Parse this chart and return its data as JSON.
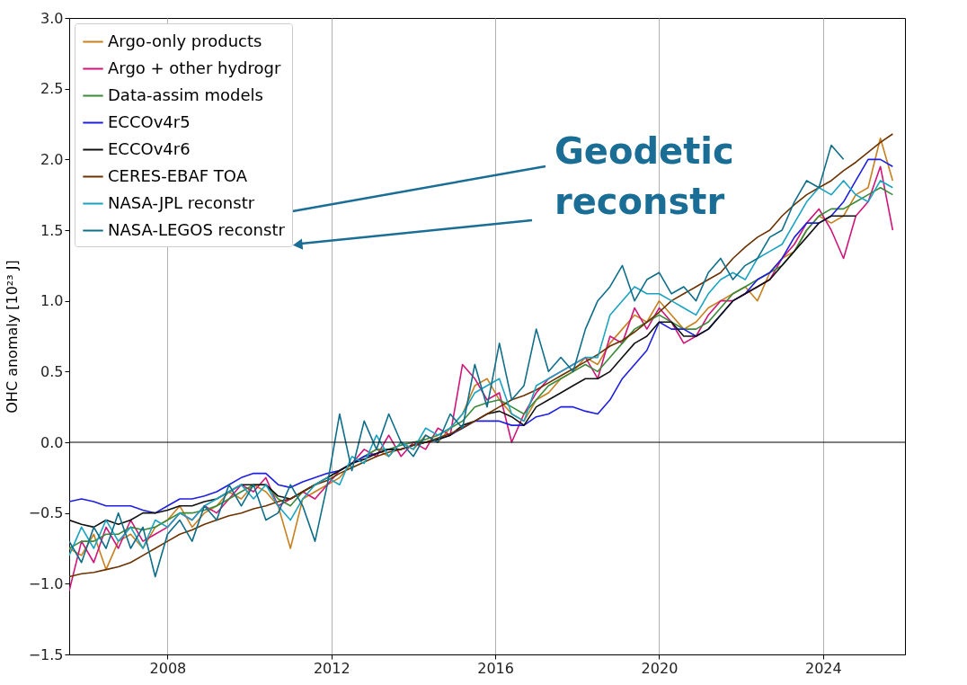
{
  "chart_data": {
    "type": "line",
    "ylabel": "OHC anomaly [10²³ J]",
    "annotations": [
      "Geodetic reconstr"
    ],
    "x": [
      2005.6,
      2005.9,
      2006.2,
      2006.5,
      2006.8,
      2007.1,
      2007.4,
      2007.7,
      2008.0,
      2008.3,
      2008.6,
      2008.9,
      2009.2,
      2009.5,
      2009.8,
      2010.1,
      2010.4,
      2010.7,
      2011.0,
      2011.3,
      2011.6,
      2011.9,
      2012.2,
      2012.5,
      2012.8,
      2013.1,
      2013.4,
      2013.7,
      2014.0,
      2014.3,
      2014.6,
      2014.9,
      2015.2,
      2015.5,
      2015.8,
      2016.1,
      2016.4,
      2016.7,
      2017.0,
      2017.3,
      2017.6,
      2017.9,
      2018.2,
      2018.5,
      2018.8,
      2019.1,
      2019.4,
      2019.7,
      2020.0,
      2020.3,
      2020.6,
      2020.9,
      2021.2,
      2021.5,
      2021.8,
      2022.1,
      2022.4,
      2022.7,
      2023.0,
      2023.3,
      2023.6,
      2023.9,
      2024.2,
      2024.5,
      2024.8,
      2025.1,
      2025.4,
      2025.7
    ],
    "series": [
      {
        "name": "Argo-only products",
        "color": "#c8801e",
        "values": [
          -0.75,
          -0.8,
          -0.65,
          -0.9,
          -0.7,
          -0.65,
          -0.75,
          -0.6,
          -0.55,
          -0.45,
          -0.6,
          -0.5,
          -0.45,
          -0.35,
          -0.4,
          -0.3,
          -0.35,
          -0.45,
          -0.75,
          -0.4,
          -0.35,
          -0.3,
          -0.25,
          -0.15,
          -0.1,
          -0.05,
          -0.1,
          0.0,
          -0.05,
          0.05,
          0.0,
          0.1,
          0.2,
          0.4,
          0.45,
          0.3,
          0.2,
          0.15,
          0.3,
          0.35,
          0.45,
          0.5,
          0.6,
          0.55,
          0.7,
          0.8,
          0.9,
          0.85,
          1.0,
          0.9,
          0.8,
          0.85,
          0.95,
          1.0,
          1.05,
          1.1,
          1.0,
          1.2,
          1.3,
          1.35,
          1.5,
          1.6,
          1.55,
          1.6,
          1.75,
          1.8,
          2.15,
          1.85
        ]
      },
      {
        "name": "Argo + other hydrogr",
        "color": "#d0157a",
        "values": [
          -1.05,
          -0.7,
          -0.85,
          -0.6,
          -0.75,
          -0.55,
          -0.7,
          -0.65,
          -0.6,
          -0.5,
          -0.55,
          -0.45,
          -0.5,
          -0.4,
          -0.3,
          -0.35,
          -0.25,
          -0.45,
          -0.4,
          -0.35,
          -0.4,
          -0.3,
          -0.2,
          -0.15,
          -0.05,
          -0.1,
          0.05,
          -0.1,
          0.0,
          -0.05,
          0.1,
          0.05,
          0.55,
          0.45,
          0.3,
          0.35,
          0.0,
          0.2,
          0.35,
          0.45,
          0.5,
          0.55,
          0.6,
          0.45,
          0.75,
          0.7,
          0.95,
          0.8,
          0.95,
          0.85,
          0.7,
          0.75,
          0.9,
          1.0,
          1.0,
          1.05,
          1.1,
          1.15,
          1.3,
          1.4,
          1.55,
          1.65,
          1.5,
          1.3,
          1.6,
          1.7,
          1.95,
          1.5
        ]
      },
      {
        "name": "Data-assim models",
        "color": "#3a8a3a",
        "values": [
          -0.75,
          -0.7,
          -0.7,
          -0.65,
          -0.65,
          -0.6,
          -0.62,
          -0.6,
          -0.55,
          -0.5,
          -0.5,
          -0.48,
          -0.45,
          -0.4,
          -0.35,
          -0.3,
          -0.3,
          -0.4,
          -0.45,
          -0.35,
          -0.3,
          -0.25,
          -0.2,
          -0.15,
          -0.1,
          -0.05,
          -0.05,
          -0.02,
          0.0,
          0.02,
          0.05,
          0.1,
          0.15,
          0.25,
          0.28,
          0.3,
          0.25,
          0.2,
          0.3,
          0.4,
          0.45,
          0.5,
          0.55,
          0.5,
          0.6,
          0.7,
          0.8,
          0.85,
          0.9,
          0.85,
          0.8,
          0.8,
          0.85,
          0.95,
          1.05,
          1.1,
          1.15,
          1.2,
          1.25,
          1.35,
          1.5,
          1.6,
          1.65,
          1.65,
          1.7,
          1.75,
          1.8,
          1.75
        ]
      },
      {
        "name": "ECCOv4r5",
        "color": "#1f1fe0",
        "values": [
          -0.42,
          -0.4,
          -0.42,
          -0.45,
          -0.45,
          -0.45,
          -0.48,
          -0.5,
          -0.45,
          -0.4,
          -0.4,
          -0.38,
          -0.35,
          -0.3,
          -0.25,
          -0.22,
          -0.22,
          -0.3,
          -0.32,
          -0.28,
          -0.25,
          -0.22,
          -0.2,
          -0.15,
          -0.1,
          -0.08,
          -0.05,
          -0.05,
          -0.02,
          0.0,
          0.02,
          0.05,
          0.1,
          0.15,
          0.15,
          0.15,
          0.12,
          0.12,
          0.18,
          0.2,
          0.25,
          0.25,
          0.22,
          0.2,
          0.3,
          0.45,
          0.55,
          0.65,
          0.85,
          0.8,
          0.8,
          0.75,
          0.8,
          0.9,
          1.0,
          1.05,
          1.15,
          1.2,
          1.3,
          1.45,
          1.55,
          1.55,
          1.6,
          1.7,
          1.85,
          2.0,
          2.0,
          1.95
        ]
      },
      {
        "name": "ECCOv4r6",
        "color": "#111111",
        "values": [
          -0.55,
          -0.58,
          -0.6,
          -0.55,
          -0.58,
          -0.55,
          -0.5,
          -0.5,
          -0.48,
          -0.45,
          -0.45,
          -0.42,
          -0.4,
          -0.35,
          -0.3,
          -0.3,
          -0.3,
          -0.38,
          -0.4,
          -0.35,
          -0.3,
          -0.25,
          -0.2,
          -0.15,
          -0.12,
          -0.08,
          -0.05,
          -0.05,
          -0.02,
          0.0,
          0.02,
          0.05,
          0.12,
          0.15,
          0.2,
          0.22,
          0.18,
          0.12,
          0.25,
          0.3,
          0.35,
          0.4,
          0.45,
          0.45,
          0.5,
          0.6,
          0.7,
          0.75,
          0.85,
          0.85,
          0.75,
          0.75,
          0.8,
          0.9,
          1.0,
          1.05,
          1.1,
          1.15,
          1.25,
          1.35,
          1.45,
          1.55,
          1.6,
          1.6,
          1.6,
          null,
          null,
          null
        ]
      },
      {
        "name": "CERES-EBAF TOA",
        "color": "#6b3200",
        "values": [
          -0.95,
          -0.93,
          -0.92,
          -0.9,
          -0.88,
          -0.85,
          -0.8,
          -0.75,
          -0.7,
          -0.65,
          -0.62,
          -0.58,
          -0.55,
          -0.52,
          -0.5,
          -0.47,
          -0.45,
          -0.42,
          -0.4,
          -0.35,
          -0.3,
          -0.27,
          -0.22,
          -0.18,
          -0.14,
          -0.1,
          -0.07,
          -0.05,
          -0.02,
          0.0,
          0.03,
          0.06,
          0.1,
          0.15,
          0.2,
          0.25,
          0.3,
          0.33,
          0.37,
          0.42,
          0.47,
          0.52,
          0.57,
          0.62,
          0.68,
          0.72,
          0.78,
          0.85,
          0.92,
          1.0,
          1.05,
          1.1,
          1.15,
          1.2,
          1.3,
          1.38,
          1.45,
          1.5,
          1.6,
          1.68,
          1.75,
          1.8,
          1.85,
          1.92,
          1.98,
          2.05,
          2.12,
          2.18
        ]
      },
      {
        "name": "NASA-JPL reconstr",
        "color": "#1aa3c0",
        "values": [
          -0.8,
          -0.6,
          -0.75,
          -0.55,
          -0.7,
          -0.6,
          -0.75,
          -0.55,
          -0.6,
          -0.5,
          -0.55,
          -0.45,
          -0.4,
          -0.35,
          -0.3,
          -0.4,
          -0.3,
          -0.45,
          -0.55,
          -0.4,
          -0.3,
          -0.25,
          -0.3,
          -0.1,
          -0.15,
          0.05,
          -0.1,
          0.0,
          -0.05,
          0.1,
          0.05,
          0.1,
          0.2,
          0.35,
          0.4,
          0.45,
          0.2,
          0.15,
          0.4,
          0.45,
          0.5,
          0.55,
          0.6,
          0.6,
          0.9,
          1.0,
          1.1,
          1.05,
          1.05,
          1.0,
          0.95,
          0.9,
          1.05,
          1.15,
          1.2,
          1.15,
          1.3,
          1.35,
          1.4,
          1.55,
          1.7,
          1.8,
          1.75,
          1.85,
          1.75,
          1.7,
          1.85,
          1.8
        ]
      },
      {
        "name": "NASA-LEGOS reconstr",
        "color": "#0e6e8a",
        "values": [
          -0.7,
          -0.85,
          -0.6,
          -0.75,
          -0.5,
          -0.75,
          -0.6,
          -0.95,
          -0.65,
          -0.55,
          -0.7,
          -0.45,
          -0.55,
          -0.3,
          -0.45,
          -0.3,
          -0.55,
          -0.5,
          -0.3,
          -0.45,
          -0.7,
          -0.3,
          0.2,
          -0.2,
          0.15,
          -0.05,
          0.2,
          0.0,
          -0.1,
          0.05,
          0.0,
          0.2,
          0.1,
          0.55,
          0.25,
          0.7,
          0.3,
          0.4,
          0.8,
          0.5,
          0.6,
          0.5,
          0.8,
          1.0,
          1.1,
          1.25,
          1.0,
          1.15,
          1.2,
          1.05,
          1.1,
          1.0,
          1.2,
          1.3,
          1.15,
          1.25,
          1.3,
          1.45,
          1.5,
          1.7,
          1.85,
          1.8,
          2.1,
          2.0,
          null,
          null,
          null,
          null
        ]
      }
    ],
    "xlim": [
      2005.6,
      2026.0
    ],
    "xticks": [
      2008,
      2012,
      2016,
      2020,
      2024
    ],
    "ylim": [
      -1.5,
      3.0
    ],
    "yticks": [
      {
        "value": -1.5,
        "label": "−1.5"
      },
      {
        "value": -1,
        "label": "−1.0"
      },
      {
        "value": -0.5,
        "label": "−0.5"
      },
      {
        "value": 0,
        "label": "0.0"
      },
      {
        "value": 0.5,
        "label": "0.5"
      },
      {
        "value": 1,
        "label": "1.0"
      },
      {
        "value": 1.5,
        "label": "1.5"
      },
      {
        "value": 2,
        "label": "2.0"
      },
      {
        "value": 2.5,
        "label": "2.5"
      },
      {
        "value": 3,
        "label": "3.0"
      }
    ],
    "ref_lines": [
      {
        "axis": "y",
        "value": 0,
        "color": "#000000"
      }
    ],
    "grid": "x",
    "legend": "top left",
    "line_style": "solid",
    "marker": "none"
  }
}
